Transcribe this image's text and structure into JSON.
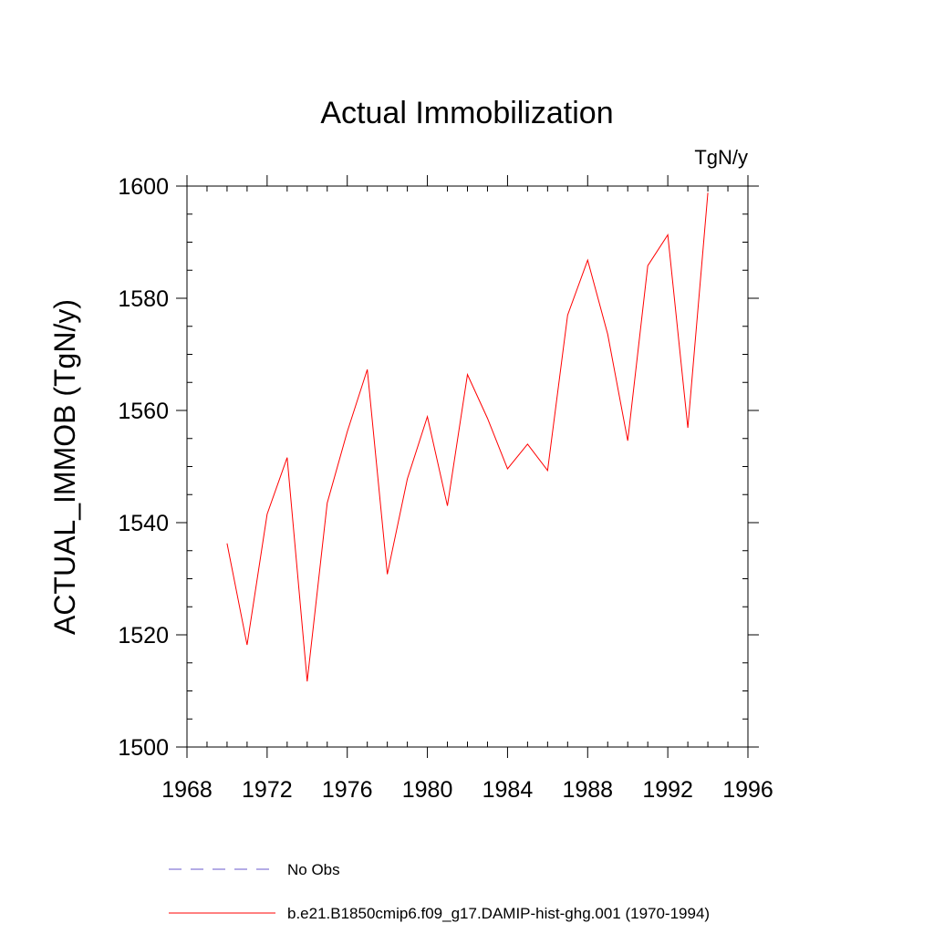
{
  "chart_data": {
    "type": "line",
    "title": "Actual Immobilization",
    "units_label": "TgN/y",
    "ylabel": "ACTUAL_IMMOB  (TgN/y)",
    "xlabel": "",
    "xlim": [
      1968,
      1996
    ],
    "ylim": [
      1500,
      1600
    ],
    "x_ticks": [
      1968,
      1972,
      1976,
      1980,
      1984,
      1988,
      1992,
      1996
    ],
    "y_ticks": [
      1500,
      1520,
      1540,
      1560,
      1580,
      1600
    ],
    "grid": false,
    "legend_position": "bottom",
    "series": [
      {
        "name": "No Obs",
        "color": "#6a5acd",
        "style": "dashed",
        "x": [],
        "values": []
      },
      {
        "name": "b.e21.B1850cmip6.f09_g17.DAMIP-hist-ghg.001 (1970-1994)",
        "color": "#ff0000",
        "style": "solid",
        "x": [
          1970,
          1971,
          1972,
          1973,
          1974,
          1975,
          1976,
          1977,
          1978,
          1979,
          1980,
          1981,
          1982,
          1983,
          1984,
          1985,
          1986,
          1987,
          1988,
          1989,
          1990,
          1991,
          1992,
          1993,
          1994
        ],
        "values": [
          1536.3,
          1518.2,
          1541.5,
          1551.6,
          1511.7,
          1543.5,
          1556.2,
          1567.3,
          1530.8,
          1547.8,
          1558.9,
          1543.0,
          1566.4,
          1558.6,
          1549.6,
          1554.0,
          1549.3,
          1577.0,
          1586.8,
          1573.6,
          1554.6,
          1585.8,
          1591.3,
          1556.9,
          1598.8
        ]
      }
    ]
  }
}
